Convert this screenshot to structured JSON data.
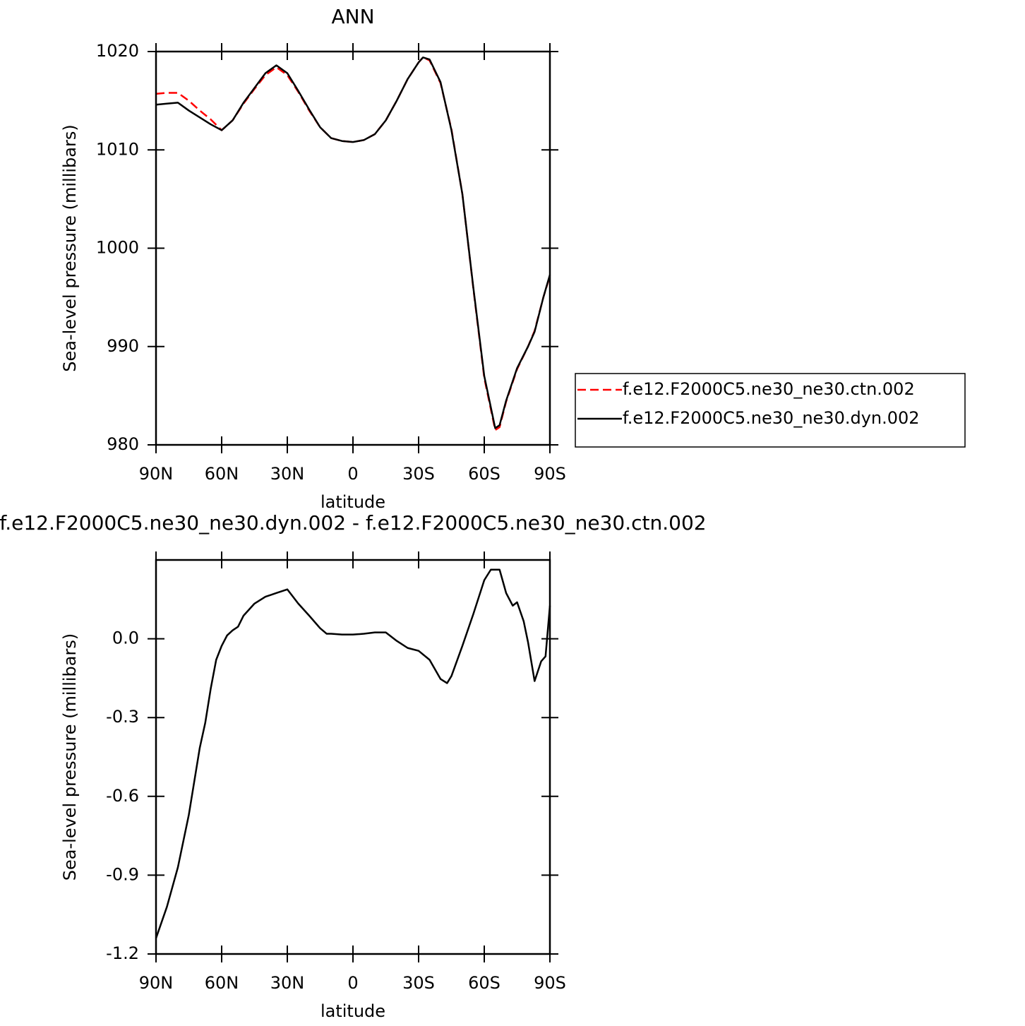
{
  "chart_data": [
    {
      "type": "line",
      "title": "ANN",
      "x_label": "latitude",
      "y_label": "Sea-level pressure (millibars)",
      "x": [
        90,
        85,
        80,
        75,
        70,
        65,
        60,
        55,
        50,
        45,
        40,
        35,
        30,
        25,
        20,
        15,
        10,
        5,
        0,
        -5,
        -10,
        -15,
        -20,
        -25,
        -30,
        -32,
        -35,
        -40,
        -45,
        -50,
        -55,
        -60,
        -65,
        -67,
        -70,
        -75,
        -80,
        -83,
        -87,
        -90
      ],
      "xlim": [
        90,
        -90
      ],
      "xticks": [
        {
          "value": 90,
          "label": "90N"
        },
        {
          "value": 60,
          "label": "60N"
        },
        {
          "value": 30,
          "label": "30N"
        },
        0,
        {
          "value": -30,
          "label": "30S"
        },
        {
          "value": -60,
          "label": "60S"
        },
        {
          "value": -90,
          "label": "90S"
        }
      ],
      "ylim": [
        980,
        1020
      ],
      "yticks": [
        980,
        990,
        1000,
        1010,
        1020
      ],
      "legend": "right",
      "series": [
        {
          "name": "f.e12.F2000C5.ne30_ne30.ctn.002",
          "color": "#ff0000",
          "dashed": true,
          "values": [
            1015.7,
            1015.8,
            1015.8,
            1015.0,
            1014.0,
            1013.1,
            1012.0,
            1013.0,
            1014.7,
            1016.2,
            1017.6,
            1018.4,
            1017.6,
            1015.9,
            1014.0,
            1012.3,
            1011.2,
            1010.9,
            1010.8,
            1011.0,
            1011.6,
            1013.0,
            1015.0,
            1017.2,
            1018.9,
            1019.4,
            1019.1,
            1016.8,
            1012.1,
            1005.5,
            995.9,
            986.8,
            981.5,
            981.8,
            984.4,
            987.7,
            990.0,
            991.6,
            995.0,
            997.2
          ]
        },
        {
          "name": "f.e12.F2000C5.ne30_ne30.dyn.002",
          "color": "#000000",
          "dashed": false,
          "values": [
            1014.6,
            1014.7,
            1014.8,
            1014.0,
            1013.3,
            1012.6,
            1012.0,
            1013.0,
            1014.8,
            1016.3,
            1017.8,
            1018.6,
            1017.8,
            1016.0,
            1014.1,
            1012.3,
            1011.2,
            1010.9,
            1010.8,
            1011.0,
            1011.6,
            1013.0,
            1015.0,
            1017.2,
            1018.9,
            1019.4,
            1019.2,
            1016.9,
            1012.0,
            1005.5,
            996.0,
            987.0,
            981.7,
            982.0,
            984.5,
            987.8,
            990.0,
            991.5,
            995.0,
            997.3
          ]
        }
      ]
    },
    {
      "type": "line",
      "title": "f.e12.F2000C5.ne30_ne30.dyn.002 - f.e12.F2000C5.ne30_ne30.ctn.002",
      "x_label": "latitude",
      "y_label": "Sea-level pressure (millibars)",
      "x": [
        90,
        85,
        80,
        75,
        70,
        67.5,
        65,
        62.5,
        60,
        57.5,
        55,
        52.5,
        50,
        45,
        40,
        35,
        30,
        25,
        20,
        15,
        12,
        10,
        5,
        0,
        -5,
        -10,
        -15,
        -20,
        -25,
        -30,
        -35,
        -40,
        -43,
        -45,
        -50,
        -55,
        -60,
        -63,
        -67,
        -70,
        -73,
        -75,
        -78,
        -80,
        -83,
        -86,
        -88,
        -90
      ],
      "xlim": [
        90,
        -90
      ],
      "xticks": [
        {
          "value": 90,
          "label": "90N"
        },
        {
          "value": 60,
          "label": "60N"
        },
        {
          "value": 30,
          "label": "30N"
        },
        0,
        {
          "value": -30,
          "label": "30S"
        },
        {
          "value": -60,
          "label": "60S"
        },
        {
          "value": -90,
          "label": "90S"
        }
      ],
      "ylim": [
        -1.2,
        0.3
      ],
      "yticks": [
        -1.2,
        -0.9,
        -0.6,
        -0.3,
        {
          "value": 0,
          "label": "0.0"
        }
      ],
      "series": [
        {
          "color": "#000000",
          "dashed": false,
          "values": [
            -1.14,
            -1.02,
            -0.87,
            -0.67,
            -0.415,
            -0.32,
            -0.19,
            -0.08,
            -0.027,
            0.013,
            0.032,
            0.046,
            0.088,
            0.134,
            0.16,
            0.174,
            0.188,
            0.134,
            0.088,
            0.04,
            0.019,
            0.019,
            0.016,
            0.016,
            0.019,
            0.024,
            0.024,
            -0.008,
            -0.035,
            -0.046,
            -0.08,
            -0.153,
            -0.169,
            -0.142,
            -0.027,
            0.094,
            0.223,
            0.263,
            0.263,
            0.174,
            0.126,
            0.139,
            0.067,
            -0.013,
            -0.161,
            -0.086,
            -0.067,
            0.126
          ]
        }
      ]
    }
  ]
}
